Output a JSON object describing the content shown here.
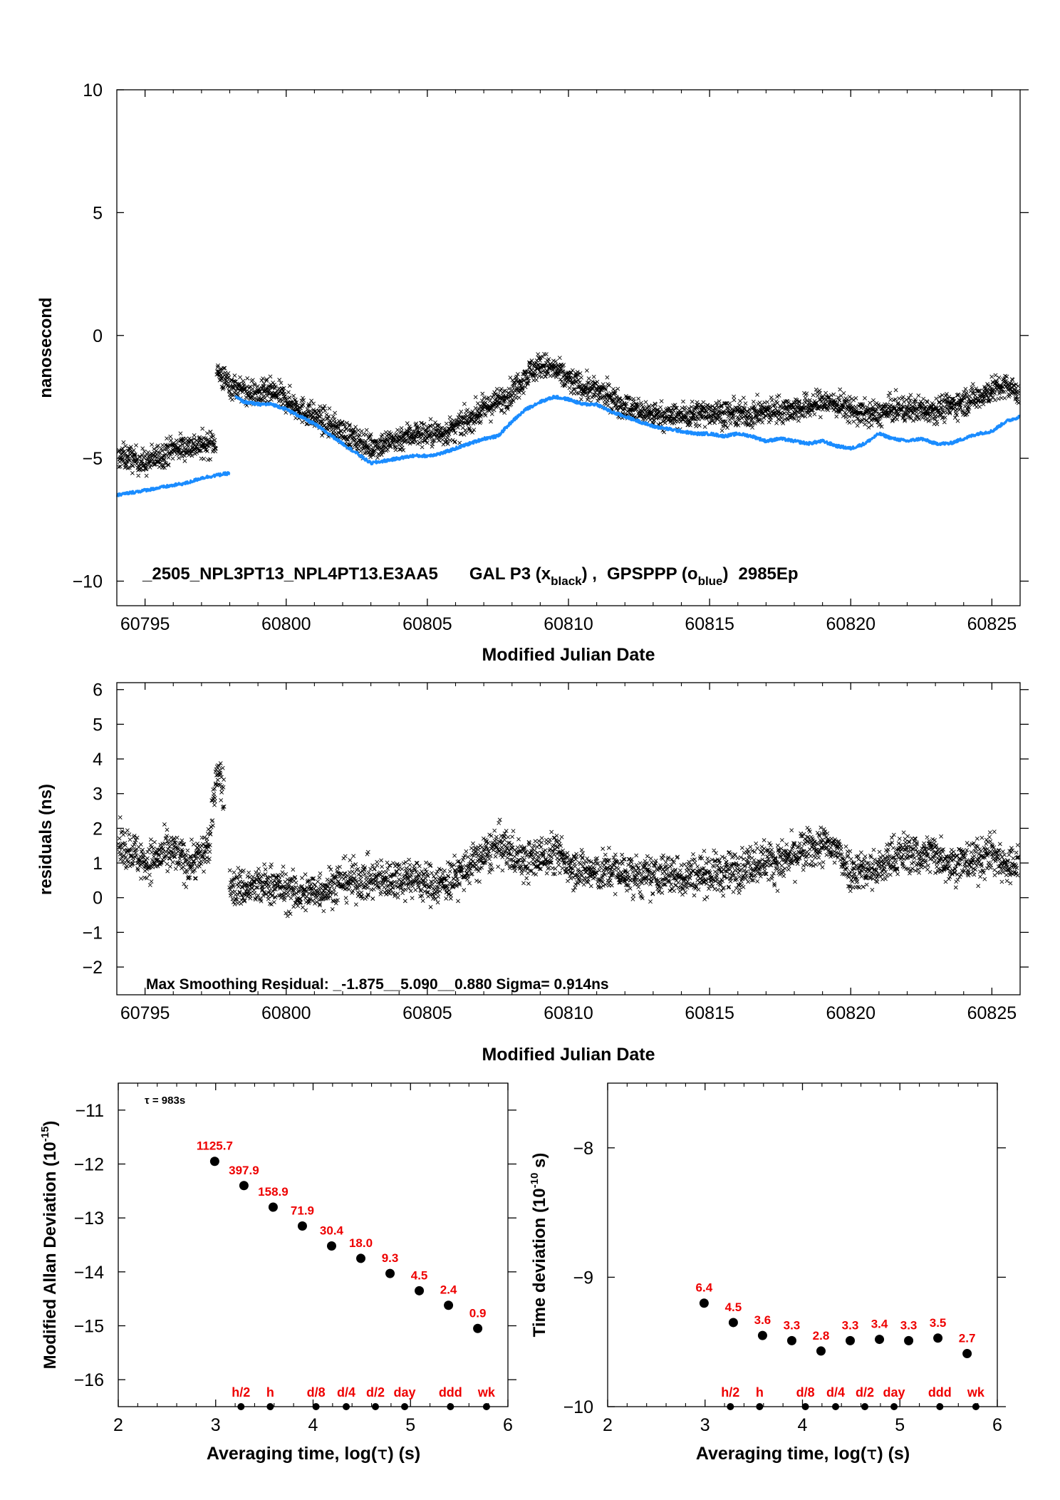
{
  "colors": {
    "black_series": "#000000",
    "blue_series": "#1a8cff",
    "annotation": "#ee0000"
  },
  "icons": {
    "gal_marker": "x-cross",
    "gps_marker": "filled-dot",
    "deviation_marker": "filled-circle"
  },
  "chart_data": [
    {
      "id": "time_comparison",
      "type": "scatter",
      "xlabel": "Modified Julian Date",
      "ylabel": "nanosecond",
      "xlim": [
        60794,
        60826
      ],
      "ylim": [
        -11,
        10
      ],
      "xticks": [
        60795,
        60800,
        60805,
        60810,
        60815,
        60820,
        60825
      ],
      "xtick_labels": [
        "60795",
        "60800",
        "60805",
        "60810",
        "60815",
        "60820",
        "60825"
      ],
      "yticks": [
        10,
        5,
        0,
        -5,
        -10
      ],
      "ytick_labels": [
        "10",
        "5",
        "0",
        "−5",
        "−10"
      ],
      "annotation": {
        "file": "_2505_NPL3PT13_NPL4PT13.E3AA5",
        "gal_prefix": "GAL P3 (x",
        "gal_sub": "black",
        "gal_suffix": ") ,",
        "gps_prefix": "GPSPPP (o",
        "gps_sub": "blue",
        "gps_suffix": ")",
        "epochs": "2985Ep"
      },
      "series": [
        {
          "name": "GAL P3 (x black)",
          "marker": "x",
          "scatter": 0.5,
          "x": [
            60794.0,
            60794.5,
            60795.0,
            60795.5,
            60796.0,
            60796.5,
            60797.0,
            60797.5,
            60797.55,
            60798.0,
            60798.5,
            60799.0,
            60799.5,
            60800.0,
            60800.5,
            60801.0,
            60801.5,
            60802.0,
            60802.5,
            60803.0,
            60803.5,
            60804.0,
            60804.5,
            60805.0,
            60805.5,
            60806.0,
            60806.5,
            60807.0,
            60807.5,
            60808.0,
            60808.5,
            60809.0,
            60809.5,
            60810.0,
            60810.5,
            60811.0,
            60811.5,
            60812.0,
            60812.5,
            60813.0,
            60813.5,
            60814.0,
            60814.5,
            60815.0,
            60815.5,
            60816.0,
            60816.5,
            60817.0,
            60817.5,
            60818.0,
            60818.5,
            60819.0,
            60819.5,
            60820.0,
            60820.5,
            60821.0,
            60821.5,
            60822.0,
            60822.5,
            60823.0,
            60823.5,
            60824.0,
            60824.5,
            60825.0,
            60825.5,
            60826.0
          ],
          "y": [
            -4.9,
            -5.0,
            -5.2,
            -4.9,
            -4.6,
            -4.5,
            -4.5,
            -4.3,
            -1.5,
            -2.0,
            -2.3,
            -2.4,
            -2.3,
            -2.6,
            -3.0,
            -3.3,
            -3.6,
            -3.9,
            -4.3,
            -4.5,
            -4.4,
            -4.2,
            -4.0,
            -4.0,
            -4.0,
            -3.8,
            -3.4,
            -3.0,
            -2.7,
            -2.3,
            -1.6,
            -1.2,
            -1.4,
            -1.8,
            -2.1,
            -2.3,
            -2.5,
            -2.9,
            -3.1,
            -3.2,
            -3.3,
            -3.3,
            -3.2,
            -3.1,
            -3.2,
            -3.2,
            -3.2,
            -3.1,
            -3.0,
            -3.0,
            -2.9,
            -2.7,
            -2.8,
            -3.0,
            -3.2,
            -3.2,
            -3.0,
            -3.0,
            -3.0,
            -3.0,
            -2.9,
            -2.7,
            -2.5,
            -2.2,
            -2.1,
            -2.3
          ]
        },
        {
          "name": "GPSPPP (o blue)",
          "marker": "dot",
          "segments": [
            {
              "x": [
                60794.0,
                60794.5,
                60795.0,
                60795.5,
                60796.0,
                60796.5,
                60797.0,
                60797.5,
                60798.0
              ],
              "y": [
                -6.5,
                -6.4,
                -6.3,
                -6.2,
                -6.1,
                -6.0,
                -5.8,
                -5.7,
                -5.6
              ]
            },
            {
              "x": [
                60798.2,
                60798.5,
                60799.0,
                60799.5,
                60800.0,
                60800.5,
                60801.0,
                60801.5,
                60802.0,
                60802.5,
                60803.0,
                60803.5,
                60804.0,
                60804.5,
                60805.0,
                60805.5,
                60806.0,
                60806.5,
                60807.0,
                60807.5,
                60808.0,
                60808.5,
                60809.0,
                60809.5,
                60810.0,
                60810.5,
                60811.0,
                60811.5,
                60812.0,
                60812.5,
                60813.0,
                60813.5,
                60814.0,
                60814.5,
                60815.0,
                60815.5,
                60816.0,
                60816.5,
                60817.0,
                60817.5,
                60818.0,
                60818.5,
                60819.0,
                60819.5,
                60820.0,
                60820.5,
                60821.0,
                60821.5,
                60822.0,
                60822.5,
                60823.0,
                60823.5,
                60824.0,
                60824.5,
                60825.0,
                60825.5,
                60826.0
              ],
              "y": [
                -2.5,
                -2.7,
                -2.8,
                -2.8,
                -3.0,
                -3.3,
                -3.6,
                -4.0,
                -4.4,
                -4.8,
                -5.2,
                -5.1,
                -5.0,
                -4.9,
                -4.9,
                -4.8,
                -4.6,
                -4.4,
                -4.2,
                -4.1,
                -3.5,
                -3.0,
                -2.7,
                -2.5,
                -2.6,
                -2.8,
                -2.8,
                -3.1,
                -3.3,
                -3.5,
                -3.7,
                -3.8,
                -3.9,
                -4.0,
                -4.0,
                -4.1,
                -4.0,
                -4.1,
                -4.3,
                -4.2,
                -4.3,
                -4.4,
                -4.3,
                -4.5,
                -4.6,
                -4.4,
                -4.0,
                -4.2,
                -4.3,
                -4.2,
                -4.4,
                -4.4,
                -4.2,
                -4.0,
                -3.9,
                -3.5,
                -3.3
              ]
            }
          ]
        }
      ]
    },
    {
      "id": "residuals",
      "type": "scatter",
      "xlabel": "Modified Julian Date",
      "ylabel": "residuals (ns)",
      "xlim": [
        60794,
        60826
      ],
      "ylim": [
        -2.8,
        6.2
      ],
      "xticks": [
        60795,
        60800,
        60805,
        60810,
        60815,
        60820,
        60825
      ],
      "xtick_labels": [
        "60795",
        "60800",
        "60805",
        "60810",
        "60815",
        "60820",
        "60825"
      ],
      "yticks": [
        6,
        5,
        4,
        3,
        2,
        1,
        0,
        -1,
        -2
      ],
      "ytick_labels": [
        "6",
        "5",
        "4",
        "3",
        "2",
        "1",
        "0",
        "−1",
        "−2"
      ],
      "annotation": "Max Smoothing Residual: _-1.875__5.090__0.880  Sigma= 0.914ns",
      "series": [
        {
          "name": "residuals",
          "marker": "x",
          "scatter": 0.55,
          "x": [
            60794.0,
            60794.5,
            60795.0,
            60795.5,
            60796.0,
            60796.5,
            60797.0,
            60797.3,
            60797.55,
            60797.8,
            60798.0,
            60798.5,
            60799.0,
            60799.5,
            60800.0,
            60800.5,
            60801.0,
            60801.5,
            60802.0,
            60802.5,
            60803.0,
            60803.5,
            60804.0,
            60804.5,
            60805.0,
            60805.5,
            60806.0,
            60806.5,
            60807.0,
            60807.5,
            60808.0,
            60808.5,
            60809.0,
            60809.5,
            60810.0,
            60810.5,
            60811.0,
            60811.5,
            60812.0,
            60812.5,
            60813.0,
            60813.5,
            60814.0,
            60814.5,
            60815.0,
            60815.5,
            60816.0,
            60816.5,
            60817.0,
            60817.5,
            60818.0,
            60818.5,
            60819.0,
            60819.5,
            60820.0,
            60820.5,
            60821.0,
            60821.5,
            60822.0,
            60822.5,
            60823.0,
            60823.5,
            60824.0,
            60824.5,
            60825.0,
            60825.5,
            60826.0
          ],
          "y": [
            1.5,
            1.4,
            1.0,
            1.2,
            1.3,
            1.0,
            1.2,
            1.6,
            3.8,
            3.0,
            0.3,
            0.3,
            0.3,
            0.4,
            0.2,
            0.1,
            0.2,
            0.3,
            0.5,
            0.5,
            0.5,
            0.5,
            0.6,
            0.6,
            0.4,
            0.4,
            0.6,
            0.9,
            1.2,
            1.5,
            1.3,
            1.0,
            1.2,
            1.3,
            1.0,
            0.8,
            0.7,
            0.8,
            0.7,
            0.6,
            0.6,
            0.7,
            0.6,
            0.7,
            0.7,
            0.7,
            0.8,
            1.0,
            1.1,
            1.0,
            1.2,
            1.4,
            1.5,
            1.4,
            0.8,
            0.8,
            0.8,
            1.2,
            1.3,
            1.2,
            1.3,
            1.0,
            1.0,
            1.1,
            1.3,
            0.9,
            1.0
          ]
        }
      ]
    },
    {
      "id": "modified_allan_deviation",
      "type": "scatter",
      "xlabel_prefix": "Averaging time, log(",
      "xlabel_tau": "τ",
      "xlabel_suffix": ") (s)",
      "ylabel_base": "Modified Allan Deviation (10",
      "ylabel_exp": "-15",
      "ylabel_close": ")",
      "xlim": [
        2,
        6
      ],
      "ylim": [
        -16.5,
        -10.5
      ],
      "xticks": [
        2,
        3,
        4,
        5,
        6
      ],
      "xtick_labels": [
        "2",
        "3",
        "4",
        "5",
        "6"
      ],
      "yticks": [
        -11,
        -12,
        -13,
        -14,
        -15,
        -16
      ],
      "ytick_labels": [
        "−11",
        "−12",
        "−13",
        "−14",
        "−15",
        "−16"
      ],
      "tau_note": "τ = 983s",
      "points": {
        "x": [
          2.99,
          3.29,
          3.59,
          3.89,
          4.19,
          4.49,
          4.79,
          5.09,
          5.39,
          5.69
        ],
        "y": [
          -11.95,
          -12.4,
          -12.8,
          -13.15,
          -13.52,
          -13.75,
          -14.03,
          -14.35,
          -14.62,
          -15.05
        ],
        "labels": [
          "1125.7",
          "397.9",
          "158.9",
          "71.9",
          "30.4",
          "18.0",
          "9.3",
          "4.5",
          "2.4",
          "0.9"
        ]
      },
      "markers": {
        "x": [
          3.26,
          3.56,
          4.03,
          4.34,
          4.64,
          4.94,
          5.41,
          5.78
        ],
        "labels": [
          "h/2",
          "h",
          "d/8",
          "d/4",
          "d/2",
          "day",
          "ddd",
          "wk"
        ],
        "y": -16.5
      }
    },
    {
      "id": "time_deviation",
      "type": "scatter",
      "xlabel_prefix": "Averaging time, log(",
      "xlabel_tau": "τ",
      "xlabel_suffix": ") (s)",
      "ylabel_base": "Time deviation (10",
      "ylabel_exp": "-10",
      "ylabel_close": " s)",
      "xlim": [
        2,
        6
      ],
      "ylim": [
        -10,
        -7.5
      ],
      "xticks": [
        2,
        3,
        4,
        5,
        6
      ],
      "xtick_labels": [
        "2",
        "3",
        "4",
        "5",
        "6"
      ],
      "yticks": [
        -8,
        -9,
        -10
      ],
      "ytick_labels": [
        "−8",
        "−9",
        "−10"
      ],
      "points": {
        "x": [
          2.99,
          3.29,
          3.59,
          3.89,
          4.19,
          4.49,
          4.79,
          5.09,
          5.39,
          5.69
        ],
        "y": [
          -9.2,
          -9.35,
          -9.45,
          -9.49,
          -9.57,
          -9.49,
          -9.48,
          -9.49,
          -9.47,
          -9.59
        ],
        "labels": [
          "6.4",
          "4.5",
          "3.6",
          "3.3",
          "2.8",
          "3.3",
          "3.4",
          "3.3",
          "3.5",
          "2.7"
        ]
      },
      "markers": {
        "x": [
          3.26,
          3.56,
          4.03,
          4.34,
          4.64,
          4.94,
          5.41,
          5.78
        ],
        "labels": [
          "h/2",
          "h",
          "d/8",
          "d/4",
          "d/2",
          "day",
          "ddd",
          "wk"
        ],
        "y": -10
      }
    }
  ]
}
